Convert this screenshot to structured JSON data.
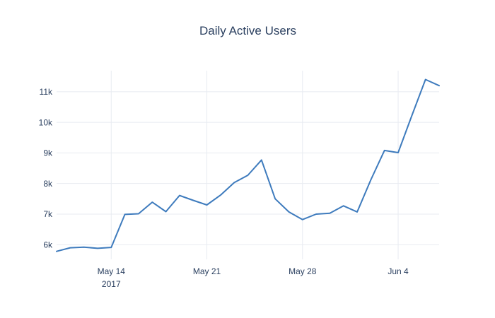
{
  "title": "Daily Active Users",
  "colors": {
    "line": "#3e7bbd",
    "grid": "#e8ebf1",
    "text": "#2a3f5f",
    "background": "#ffffff"
  },
  "chart_data": {
    "type": "line",
    "title": "Daily Active Users",
    "x": [
      "May 10",
      "May 11",
      "May 12",
      "May 13",
      "May 14",
      "May 15",
      "May 16",
      "May 17",
      "May 18",
      "May 19",
      "May 20",
      "May 21",
      "May 22",
      "May 23",
      "May 24",
      "May 25",
      "May 26",
      "May 27",
      "May 28",
      "May 29",
      "May 30",
      "May 31",
      "Jun 1",
      "Jun 2",
      "Jun 3",
      "Jun 4",
      "Jun 5",
      "Jun 6",
      "Jun 7"
    ],
    "year": "2017",
    "values": [
      5780,
      5900,
      5920,
      5880,
      5910,
      6990,
      7010,
      7390,
      7080,
      7610,
      7450,
      7300,
      7620,
      8030,
      8270,
      8770,
      7500,
      7070,
      6820,
      7000,
      7030,
      7270,
      7070,
      8120,
      9080,
      9010,
      10220,
      11400,
      11200
    ],
    "xlabel": "",
    "ylabel": "",
    "ylim": [
      5520,
      11690
    ],
    "yticks": [
      {
        "label": "6k",
        "value": 6000
      },
      {
        "label": "7k",
        "value": 7000
      },
      {
        "label": "8k",
        "value": 8000
      },
      {
        "label": "9k",
        "value": 9000
      },
      {
        "label": "10k",
        "value": 10000
      },
      {
        "label": "11k",
        "value": 11000
      }
    ],
    "xticks": [
      {
        "label": "May 14",
        "sublabel": "2017",
        "index": 4
      },
      {
        "label": "May 21",
        "index": 11
      },
      {
        "label": "May 28",
        "index": 18
      },
      {
        "label": "Jun 4",
        "index": 25
      }
    ],
    "grid": true,
    "legend": "none"
  }
}
